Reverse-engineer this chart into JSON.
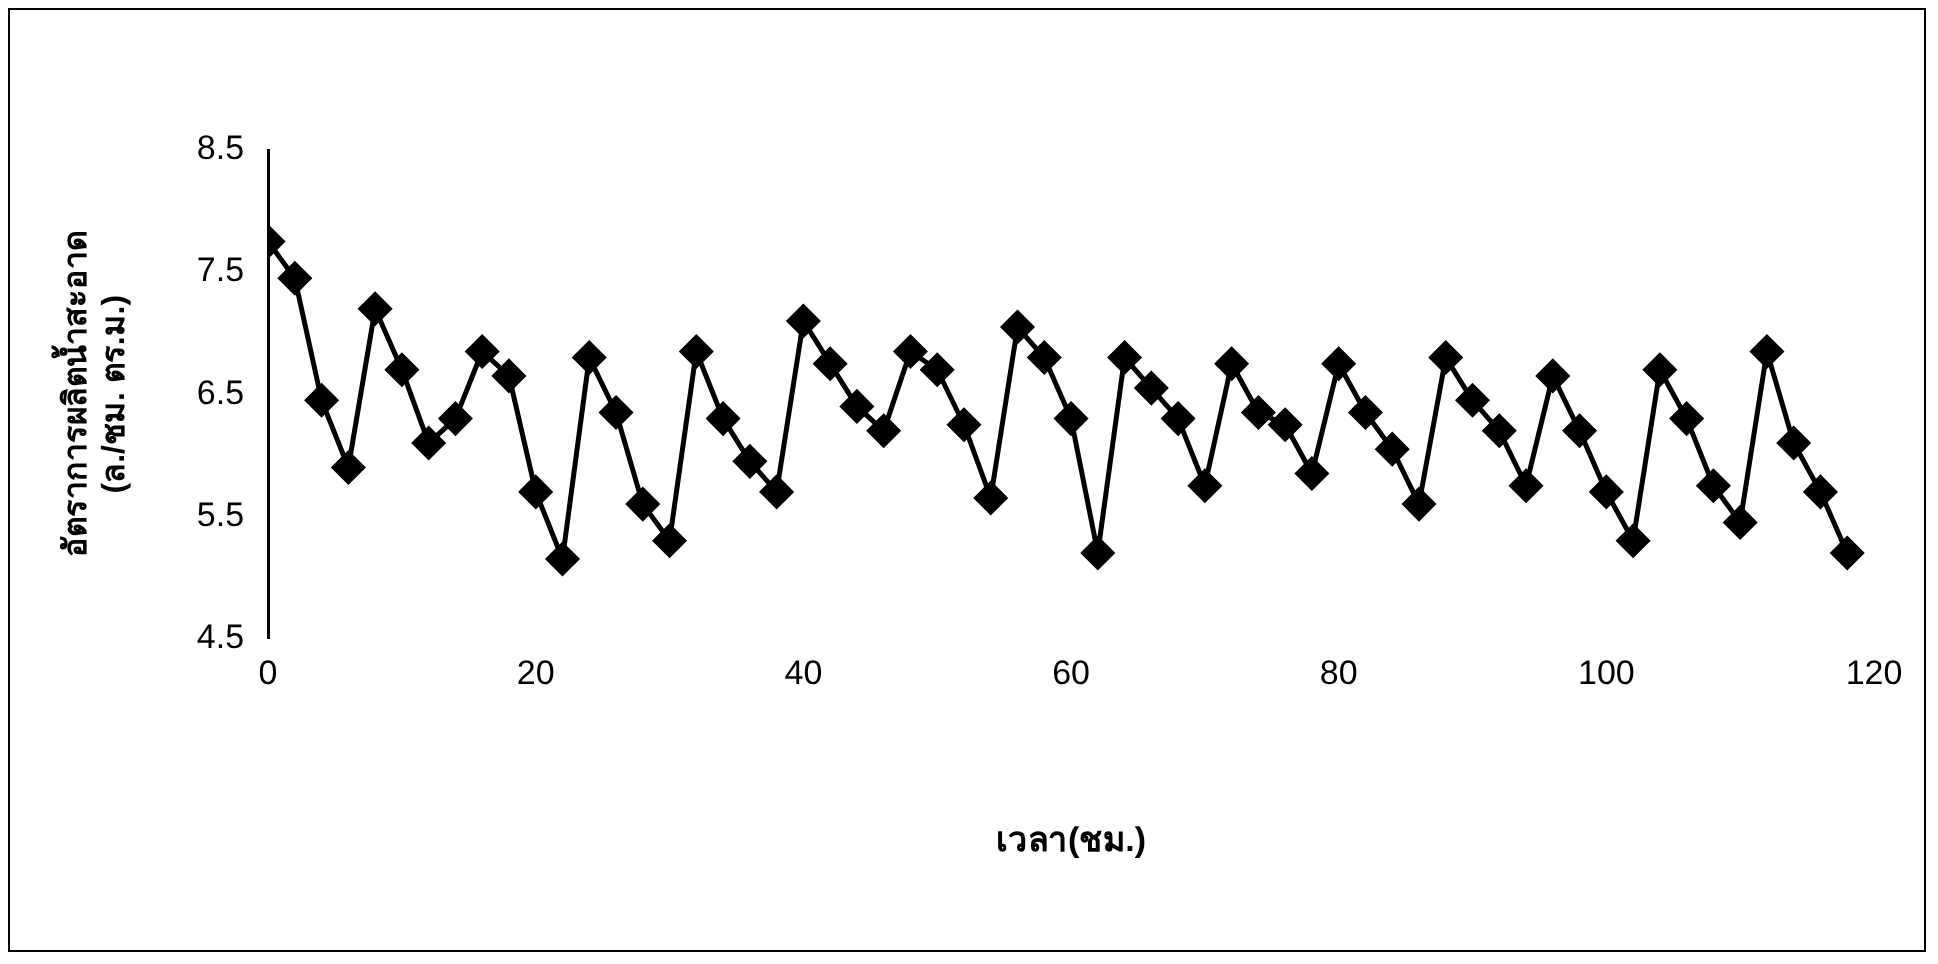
{
  "chart_data": {
    "type": "line",
    "xlabel": "เวลา(ชม.)",
    "ylabel": "อัตราการผลิตน้ำสะอาด\n(ล./ชม. ตร.ม.)",
    "x": [
      0,
      2,
      4,
      6,
      8,
      10,
      12,
      14,
      16,
      18,
      20,
      22,
      24,
      26,
      28,
      30,
      32,
      34,
      36,
      38,
      40,
      42,
      44,
      46,
      48,
      50,
      52,
      54,
      56,
      58,
      60,
      62,
      64,
      66,
      68,
      70,
      72,
      74,
      76,
      78,
      80,
      82,
      84,
      86,
      88,
      90,
      92,
      94,
      96,
      98,
      100,
      102,
      104,
      106,
      108,
      110,
      112,
      114,
      116,
      118
    ],
    "series": [
      {
        "color": "#000000",
        "values": [
          7.75,
          7.45,
          6.45,
          5.9,
          7.2,
          6.7,
          6.1,
          6.3,
          6.85,
          6.65,
          5.7,
          5.15,
          6.8,
          6.35,
          5.6,
          5.3,
          6.85,
          6.3,
          5.95,
          5.7,
          7.1,
          6.75,
          6.4,
          6.2,
          6.85,
          6.7,
          6.25,
          5.65,
          7.05,
          6.8,
          6.3,
          5.2,
          6.8,
          6.55,
          6.3,
          5.75,
          6.75,
          6.35,
          6.25,
          5.85,
          6.75,
          6.35,
          6.05,
          5.6,
          6.8,
          6.45,
          6.2,
          5.75,
          6.65,
          6.2,
          5.7,
          5.3,
          6.7,
          6.3,
          5.75,
          5.45,
          6.85,
          6.1,
          5.7,
          5.2
        ]
      }
    ],
    "xlim": [
      0,
      120
    ],
    "xticks": [
      0,
      20,
      40,
      60,
      80,
      100,
      120
    ],
    "ylim": [
      4.5,
      8.5
    ],
    "yticks": [
      4.5,
      5.5,
      6.5,
      7.5,
      8.5
    ],
    "grid": false,
    "legend": false,
    "marker": "diamond",
    "line_style": "solid"
  }
}
